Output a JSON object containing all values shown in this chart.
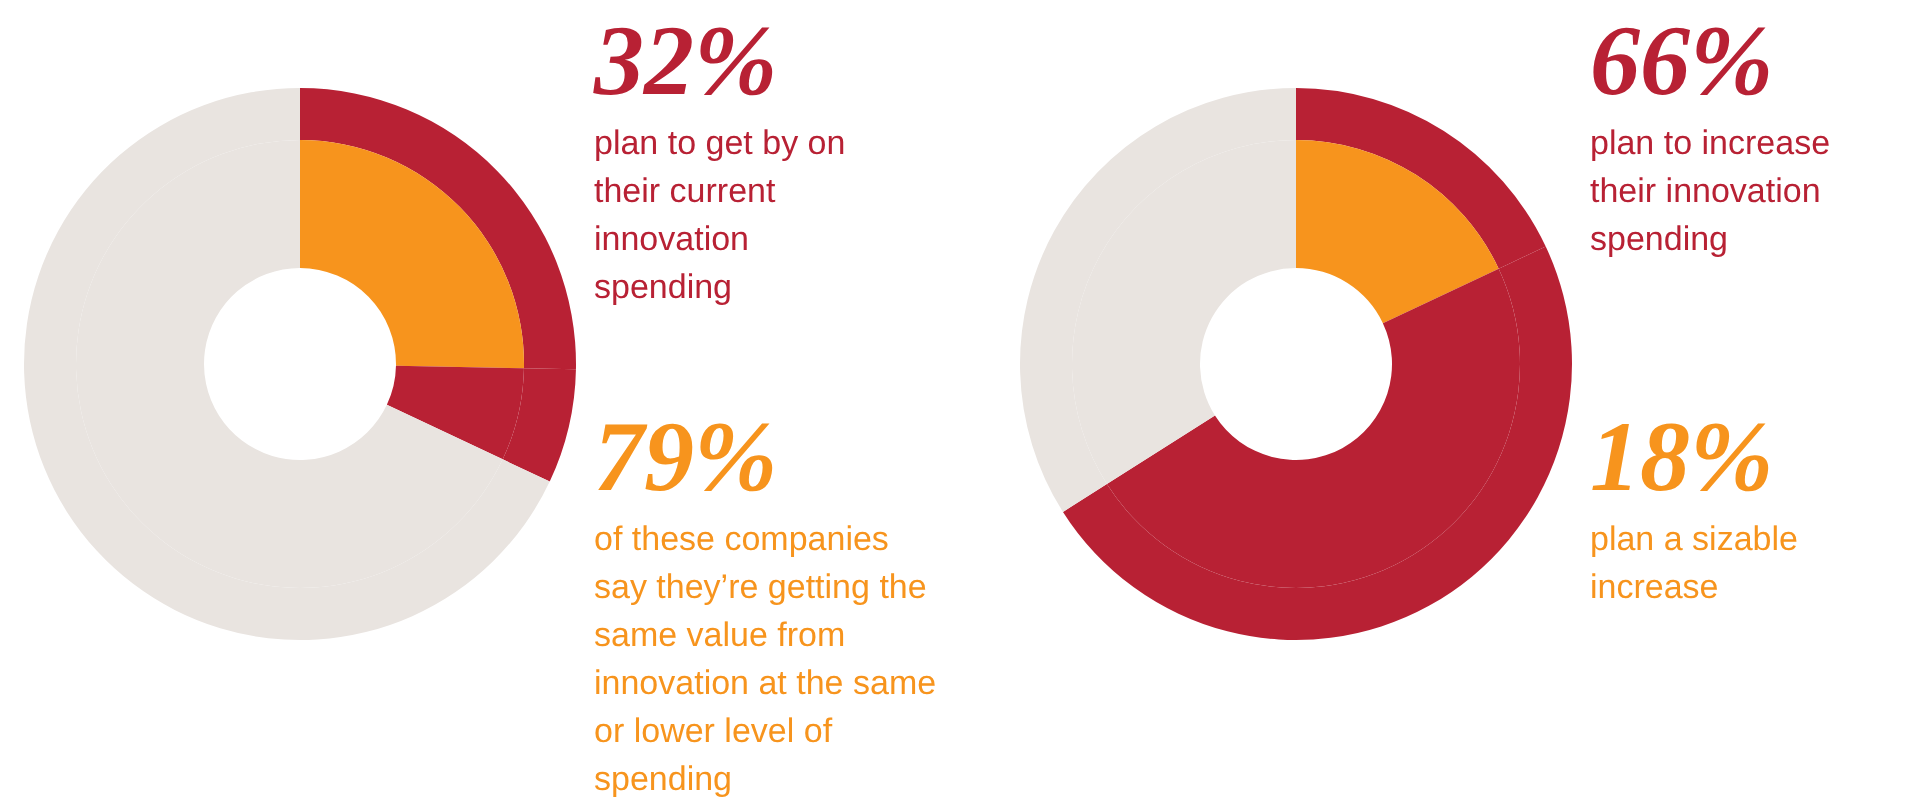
{
  "chart_data": [
    {
      "type": "donut",
      "categories": [
        null,
        null,
        null
      ],
      "series": [
        {
          "values": [
            25.3,
            6.7,
            68
          ],
          "colors": [
            "#b82134",
            "#b82134",
            "#e9e4e0"
          ]
        },
        {
          "values": [
            25.3,
            6.7,
            68
          ],
          "colors": [
            "#f7941d",
            "#b82134",
            "#e9e4e0"
          ]
        }
      ],
      "annotations": [
        "32%",
        "plan to get by on their current innovation spending",
        "79%",
        "of these companies say they’re getting the same value from innovation at the same or lower level of spending"
      ]
    },
    {
      "type": "donut",
      "categories": [
        null,
        null,
        null
      ],
      "series": [
        {
          "values": [
            18,
            48,
            34
          ],
          "colors": [
            "#b82134",
            "#b82134",
            "#e9e4e0"
          ]
        },
        {
          "values": [
            18,
            48,
            34
          ],
          "colors": [
            "#f7941d",
            "#b82134",
            "#e9e4e0"
          ]
        }
      ],
      "annotations": [
        "66%",
        "plan to increase their innovation spending",
        "18%",
        "plan a sizable increase"
      ]
    }
  ]
}
